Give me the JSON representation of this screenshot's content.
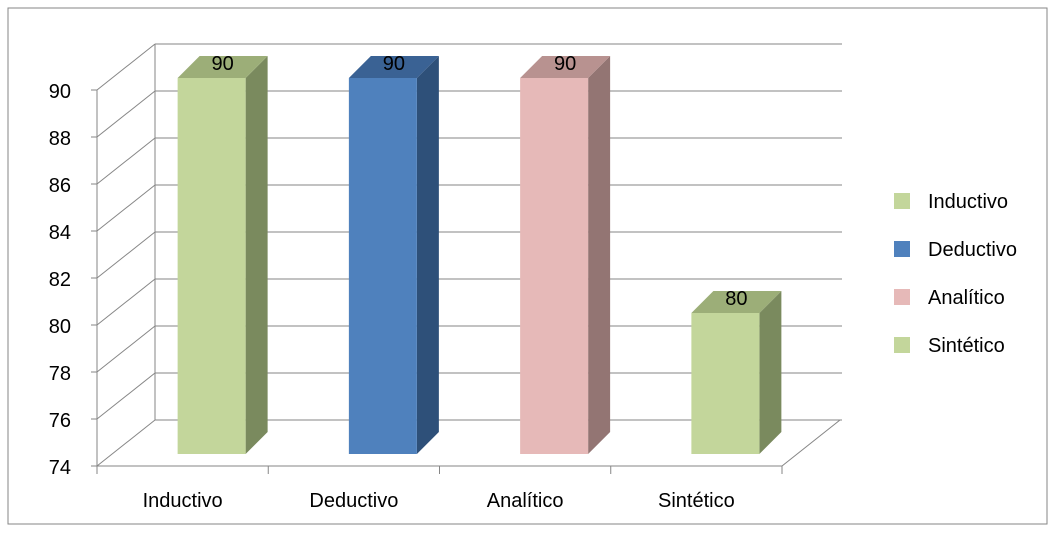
{
  "chart_data": {
    "type": "bar",
    "categories": [
      "Inductivo",
      "Deductivo",
      "Analítico",
      "Sintético"
    ],
    "values": [
      90,
      90,
      90,
      80
    ],
    "data_labels": [
      "90",
      "90",
      "90",
      "80"
    ],
    "ylim": [
      74,
      90
    ],
    "yticks": [
      "74",
      "76",
      "78",
      "80",
      "82",
      "84",
      "86",
      "88",
      "90"
    ],
    "colors": [
      "#c3d69b",
      "#4f81bd",
      "#e6b9b8",
      "#c3d69b"
    ],
    "side_colors": [
      "#7a8a5e",
      "#2e5079",
      "#937573",
      "#7a8a5e"
    ],
    "top_colors": [
      "#9cae78",
      "#3a6294",
      "#b89290",
      "#9cae78"
    ],
    "grid": true,
    "legend": {
      "placement": "right",
      "entries": [
        {
          "label": "Inductivo",
          "color": "#c3d69b"
        },
        {
          "label": "Deductivo",
          "color": "#4f81bd"
        },
        {
          "label": "Analítico",
          "color": "#e6b9b8"
        },
        {
          "label": "Sintético",
          "color": "#c3d69b"
        }
      ]
    },
    "title": "",
    "xlabel": "",
    "ylabel": ""
  }
}
